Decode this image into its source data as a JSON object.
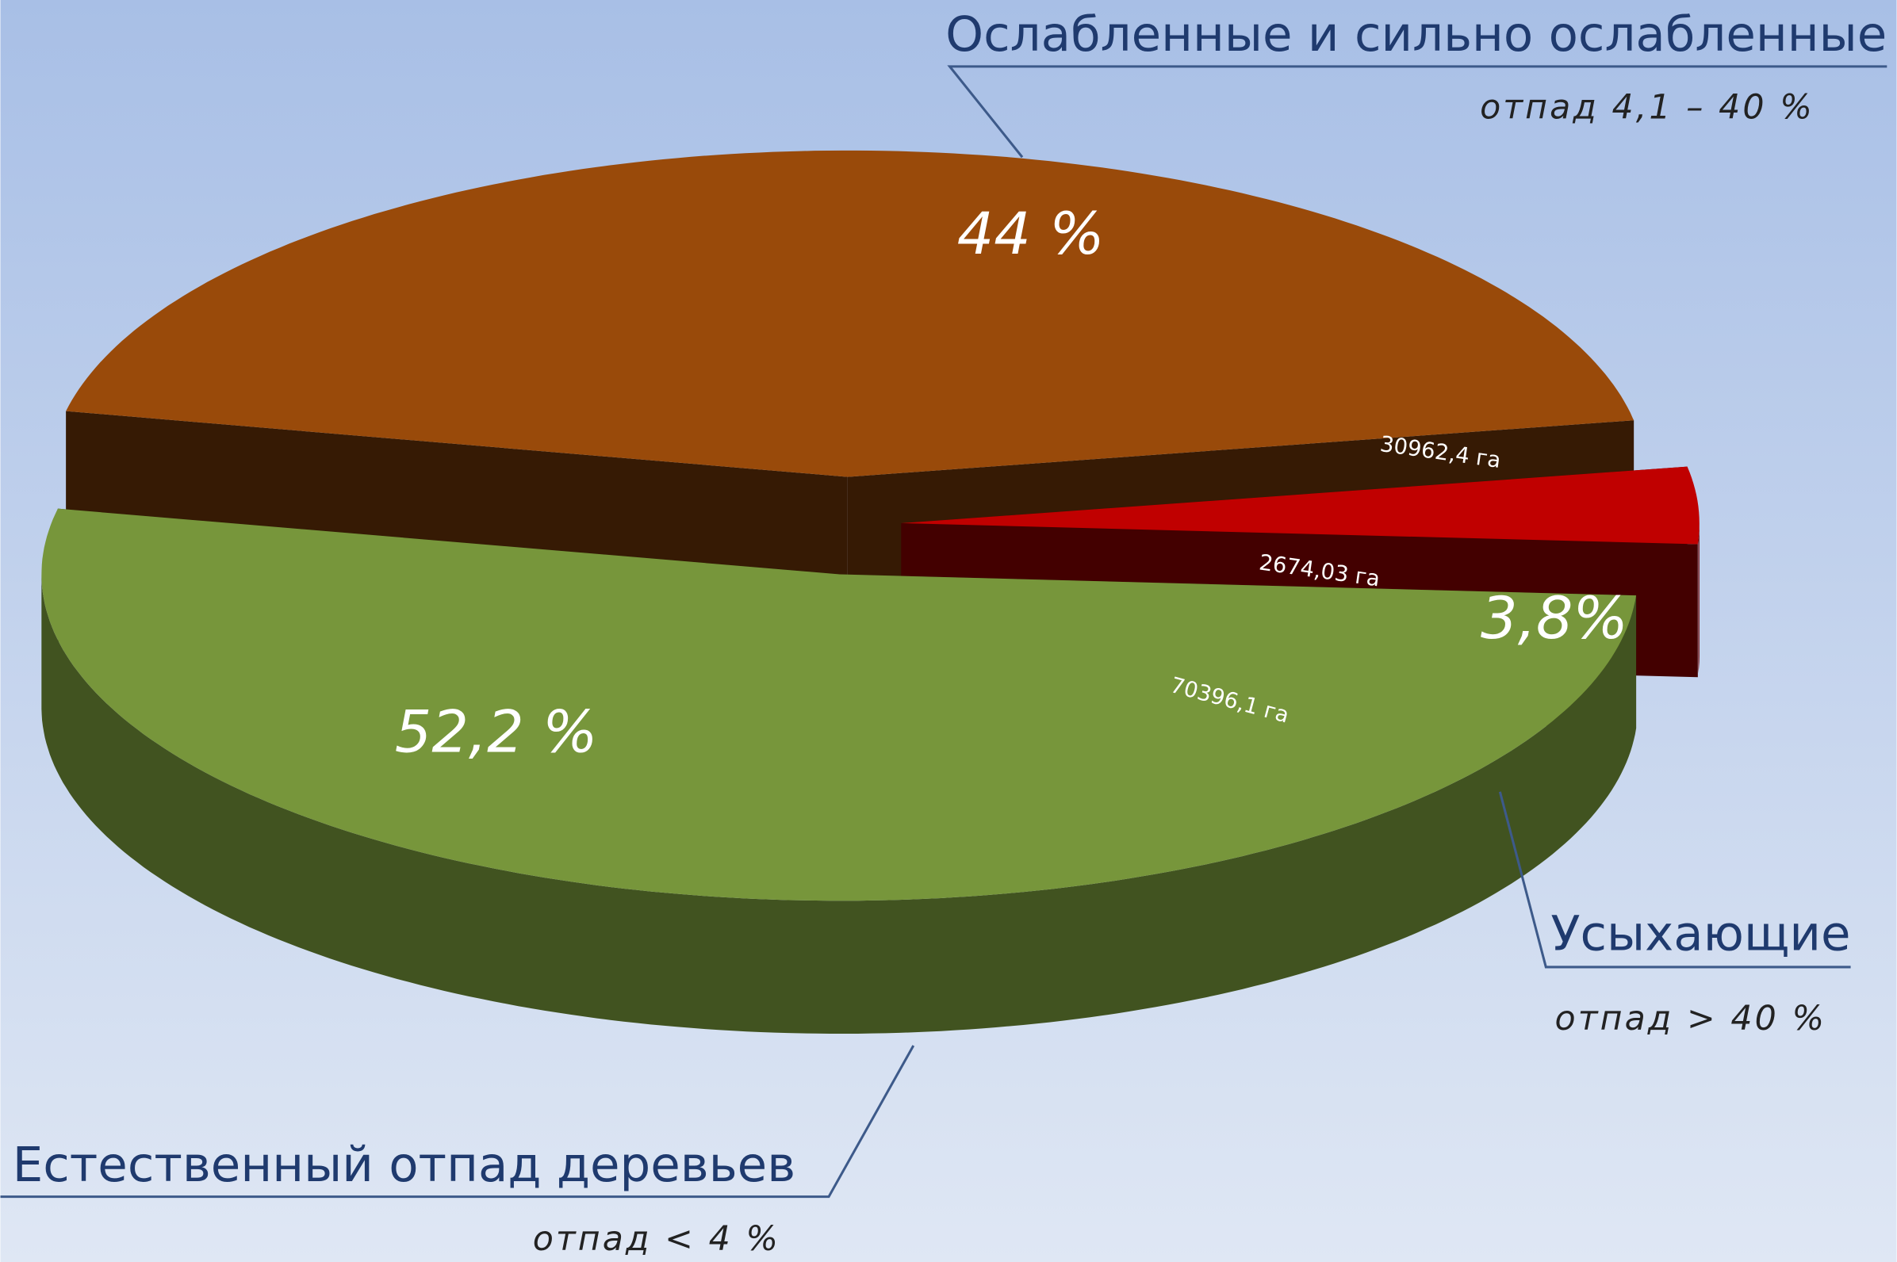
{
  "chart_data": {
    "type": "pie",
    "categories": [
      "Естественный отпад деревьев",
      "Ослабленные и сильно ослабленные",
      "Усыхающие"
    ],
    "values": [
      52.2,
      44,
      3.8
    ],
    "value_labels": [
      "52,2 %",
      "44 %",
      "3,8%"
    ],
    "area_labels": [
      "70396,1 га",
      "30962,4 га",
      "2674,03 га"
    ],
    "notes": [
      "отпад < 4 %",
      "отпад 4,1 – 40 %",
      "отпад > 40 %"
    ],
    "colors": [
      "#77963b",
      "#994a0a",
      "#c00000"
    ]
  }
}
